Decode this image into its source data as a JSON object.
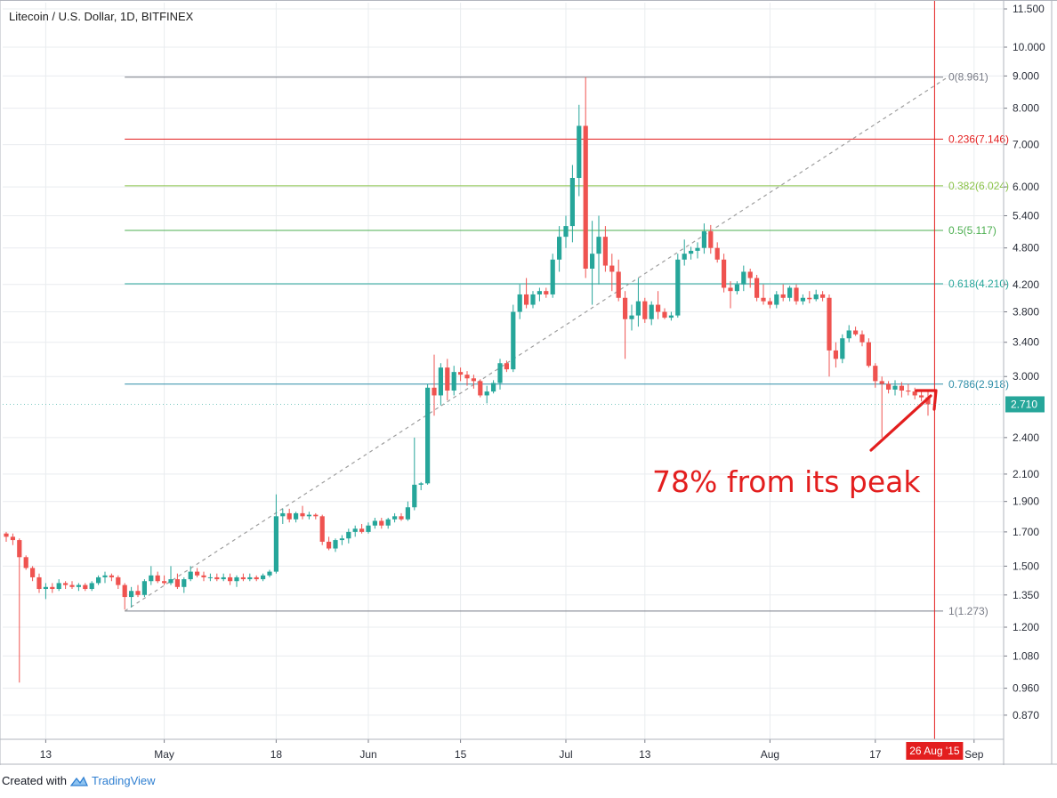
{
  "header": {
    "title": "Litecoin / U.S. Dollar, 1D, BITFINEX"
  },
  "annotation": {
    "text": "78% from its peak"
  },
  "footer": {
    "created_with": "Created with",
    "brand": "TradingView"
  },
  "price_badge": {
    "text": "2.710",
    "color": "#26a69a"
  },
  "date_badge": {
    "text": "26 Aug '15",
    "color": "#e31e1e"
  },
  "colors": {
    "up": "#26a69a",
    "down": "#ef5350",
    "grid": "#e9ecef",
    "accent": "#e31e1e"
  },
  "chart_data": {
    "type": "candlestick",
    "title": "Litecoin / U.S. Dollar, 1D, BITFINEX",
    "y_scale": "log",
    "y_ticks": [
      11.5,
      10.0,
      9.0,
      8.0,
      7.0,
      6.0,
      5.4,
      4.8,
      4.2,
      3.8,
      3.4,
      3.0,
      2.4,
      2.1,
      1.9,
      1.7,
      1.5,
      1.35,
      1.2,
      1.08,
      0.96,
      0.87
    ],
    "y_tick_labels": [
      "11.500",
      "10.000",
      "9.000",
      "8.000",
      "7.000",
      "6.000",
      "5.400",
      "4.800",
      "4.200",
      "3.800",
      "3.400",
      "3.000",
      "2.400",
      "2.100",
      "1.900",
      "1.700",
      "1.500",
      "1.350",
      "1.200",
      "1.080",
      "0.960",
      "0.870"
    ],
    "x_ticks": [
      {
        "label": "13",
        "day": 6
      },
      {
        "label": "May",
        "day": 24
      },
      {
        "label": "18",
        "day": 41
      },
      {
        "label": "Jun",
        "day": 55
      },
      {
        "label": "15",
        "day": 69
      },
      {
        "label": "Jul",
        "day": 85
      },
      {
        "label": "13",
        "day": 97
      },
      {
        "label": "Aug",
        "day": 116
      },
      {
        "label": "17",
        "day": 132
      },
      {
        "label": "Sep",
        "day": 147
      }
    ],
    "fibonacci": [
      {
        "label": "0(8.961)",
        "value": 8.961,
        "color": "#787b86"
      },
      {
        "label": "0.236(7.146)",
        "value": 7.146,
        "color": "#e31e1e"
      },
      {
        "label": "0.382(6.024)",
        "value": 6.024,
        "color": "#8bc34a"
      },
      {
        "label": "0.5(5.117)",
        "value": 5.117,
        "color": "#4caf50"
      },
      {
        "label": "0.618(4.210)",
        "value": 4.21,
        "color": "#26a69a"
      },
      {
        "label": "0.786(2.918)",
        "value": 2.918,
        "color": "#2f8ea8"
      },
      {
        "label": "1(1.273)",
        "value": 1.273,
        "color": "#787b86"
      }
    ],
    "trend_line": {
      "from": {
        "day": 18,
        "value": 1.273
      },
      "to": {
        "day": 143,
        "value": 8.961
      }
    },
    "last_price": 2.71,
    "marker_day": 141,
    "candles": [
      [
        1.69,
        1.7,
        1.64,
        1.67
      ],
      [
        1.67,
        1.69,
        1.62,
        1.65
      ],
      [
        1.65,
        1.66,
        0.98,
        1.55
      ],
      [
        1.55,
        1.56,
        1.48,
        1.49
      ],
      [
        1.49,
        1.5,
        1.42,
        1.44
      ],
      [
        1.44,
        1.46,
        1.36,
        1.38
      ],
      [
        1.38,
        1.41,
        1.33,
        1.39
      ],
      [
        1.39,
        1.41,
        1.36,
        1.38
      ],
      [
        1.38,
        1.43,
        1.37,
        1.41
      ],
      [
        1.41,
        1.42,
        1.38,
        1.4
      ],
      [
        1.4,
        1.42,
        1.38,
        1.39
      ],
      [
        1.39,
        1.41,
        1.37,
        1.4
      ],
      [
        1.4,
        1.41,
        1.37,
        1.38
      ],
      [
        1.38,
        1.42,
        1.37,
        1.41
      ],
      [
        1.41,
        1.45,
        1.4,
        1.44
      ],
      [
        1.44,
        1.47,
        1.41,
        1.45
      ],
      [
        1.45,
        1.46,
        1.42,
        1.44
      ],
      [
        1.44,
        1.45,
        1.38,
        1.4
      ],
      [
        1.4,
        1.41,
        1.28,
        1.34
      ],
      [
        1.34,
        1.39,
        1.29,
        1.37
      ],
      [
        1.37,
        1.4,
        1.34,
        1.35
      ],
      [
        1.35,
        1.43,
        1.34,
        1.42
      ],
      [
        1.42,
        1.5,
        1.4,
        1.45
      ],
      [
        1.45,
        1.47,
        1.41,
        1.42
      ],
      [
        1.42,
        1.45,
        1.4,
        1.41
      ],
      [
        1.41,
        1.5,
        1.4,
        1.43
      ],
      [
        1.43,
        1.46,
        1.38,
        1.39
      ],
      [
        1.39,
        1.44,
        1.36,
        1.43
      ],
      [
        1.43,
        1.5,
        1.42,
        1.47
      ],
      [
        1.47,
        1.49,
        1.44,
        1.45
      ],
      [
        1.45,
        1.47,
        1.42,
        1.44
      ],
      [
        1.44,
        1.46,
        1.42,
        1.44
      ],
      [
        1.44,
        1.46,
        1.42,
        1.43
      ],
      [
        1.43,
        1.46,
        1.42,
        1.44
      ],
      [
        1.44,
        1.46,
        1.4,
        1.42
      ],
      [
        1.42,
        1.45,
        1.39,
        1.44
      ],
      [
        1.44,
        1.46,
        1.42,
        1.43
      ],
      [
        1.43,
        1.46,
        1.42,
        1.44
      ],
      [
        1.44,
        1.45,
        1.42,
        1.43
      ],
      [
        1.43,
        1.46,
        1.42,
        1.45
      ],
      [
        1.45,
        1.48,
        1.44,
        1.47
      ],
      [
        1.47,
        1.95,
        1.46,
        1.8
      ],
      [
        1.8,
        1.85,
        1.75,
        1.82
      ],
      [
        1.82,
        1.85,
        1.76,
        1.78
      ],
      [
        1.78,
        1.83,
        1.76,
        1.82
      ],
      [
        1.82,
        1.87,
        1.78,
        1.8
      ],
      [
        1.8,
        1.83,
        1.78,
        1.81
      ],
      [
        1.81,
        1.82,
        1.78,
        1.8
      ],
      [
        1.8,
        1.81,
        1.62,
        1.64
      ],
      [
        1.64,
        1.67,
        1.59,
        1.6
      ],
      [
        1.6,
        1.66,
        1.58,
        1.65
      ],
      [
        1.65,
        1.68,
        1.62,
        1.66
      ],
      [
        1.66,
        1.72,
        1.63,
        1.7
      ],
      [
        1.7,
        1.74,
        1.67,
        1.72
      ],
      [
        1.72,
        1.75,
        1.69,
        1.7
      ],
      [
        1.7,
        1.76,
        1.69,
        1.74
      ],
      [
        1.74,
        1.79,
        1.72,
        1.77
      ],
      [
        1.77,
        1.79,
        1.72,
        1.74
      ],
      [
        1.74,
        1.79,
        1.72,
        1.78
      ],
      [
        1.78,
        1.82,
        1.76,
        1.8
      ],
      [
        1.8,
        1.82,
        1.77,
        1.78
      ],
      [
        1.78,
        1.9,
        1.77,
        1.86
      ],
      [
        1.86,
        2.4,
        1.84,
        2.02
      ],
      [
        2.02,
        2.04,
        1.98,
        2.03
      ],
      [
        2.03,
        2.92,
        2.02,
        2.88
      ],
      [
        2.88,
        3.25,
        2.6,
        2.8
      ],
      [
        2.8,
        3.15,
        2.7,
        3.1
      ],
      [
        3.1,
        3.2,
        2.75,
        2.85
      ],
      [
        2.85,
        3.12,
        2.8,
        3.05
      ],
      [
        3.05,
        3.1,
        2.95,
        3.02
      ],
      [
        3.02,
        3.06,
        2.9,
        2.98
      ],
      [
        2.98,
        3.02,
        2.87,
        2.95
      ],
      [
        2.95,
        2.97,
        2.78,
        2.8
      ],
      [
        2.8,
        2.9,
        2.72,
        2.84
      ],
      [
        2.84,
        2.96,
        2.82,
        2.93
      ],
      [
        2.93,
        3.2,
        2.86,
        3.15
      ],
      [
        3.15,
        3.18,
        3.05,
        3.08
      ],
      [
        3.08,
        3.9,
        3.05,
        3.8
      ],
      [
        3.8,
        4.2,
        3.7,
        4.05
      ],
      [
        4.05,
        4.3,
        3.85,
        3.9
      ],
      [
        3.9,
        4.1,
        3.85,
        4.05
      ],
      [
        4.05,
        4.15,
        3.95,
        4.1
      ],
      [
        4.1,
        4.15,
        4.0,
        4.05
      ],
      [
        4.05,
        4.7,
        4.0,
        4.6
      ],
      [
        4.6,
        5.2,
        4.4,
        5.0
      ],
      [
        5.0,
        5.4,
        4.8,
        5.2
      ],
      [
        5.2,
        6.5,
        4.9,
        6.2
      ],
      [
        6.2,
        8.1,
        5.8,
        7.5
      ],
      [
        7.5,
        8.96,
        4.3,
        4.45
      ],
      [
        4.45,
        5.3,
        3.9,
        4.7
      ],
      [
        4.7,
        5.4,
        4.2,
        5.0
      ],
      [
        5.0,
        5.2,
        4.4,
        4.5
      ],
      [
        4.5,
        4.7,
        4.1,
        4.4
      ],
      [
        4.4,
        4.6,
        3.95,
        4.0
      ],
      [
        4.0,
        4.1,
        3.2,
        3.7
      ],
      [
        3.7,
        3.9,
        3.55,
        3.75
      ],
      [
        3.75,
        4.3,
        3.6,
        3.95
      ],
      [
        3.95,
        4.0,
        3.65,
        3.7
      ],
      [
        3.7,
        3.95,
        3.62,
        3.9
      ],
      [
        3.9,
        4.1,
        3.7,
        3.8
      ],
      [
        3.8,
        3.85,
        3.7,
        3.72
      ],
      [
        3.72,
        3.8,
        3.68,
        3.75
      ],
      [
        3.75,
        4.7,
        3.72,
        4.6
      ],
      [
        4.6,
        4.95,
        4.5,
        4.7
      ],
      [
        4.7,
        4.82,
        4.6,
        4.75
      ],
      [
        4.75,
        4.9,
        4.62,
        4.8
      ],
      [
        4.8,
        5.25,
        4.7,
        5.1
      ],
      [
        5.1,
        5.22,
        4.7,
        4.8
      ],
      [
        4.8,
        4.9,
        4.55,
        4.6
      ],
      [
        4.6,
        4.7,
        4.08,
        4.15
      ],
      [
        4.15,
        4.25,
        3.85,
        4.1
      ],
      [
        4.1,
        4.25,
        4.05,
        4.2
      ],
      [
        4.2,
        4.5,
        4.1,
        4.4
      ],
      [
        4.4,
        4.45,
        4.15,
        4.3
      ],
      [
        4.3,
        4.35,
        3.95,
        4.0
      ],
      [
        4.0,
        4.2,
        3.9,
        3.95
      ],
      [
        3.95,
        4.0,
        3.85,
        3.9
      ],
      [
        3.9,
        4.1,
        3.85,
        4.05
      ],
      [
        4.05,
        4.2,
        3.95,
        4.0
      ],
      [
        4.0,
        4.18,
        3.95,
        4.15
      ],
      [
        4.15,
        4.2,
        3.9,
        3.95
      ],
      [
        3.95,
        4.05,
        3.9,
        4.0
      ],
      [
        4.0,
        4.1,
        3.92,
        3.98
      ],
      [
        3.98,
        4.12,
        3.95,
        4.05
      ],
      [
        4.05,
        4.1,
        3.95,
        4.0
      ],
      [
        4.0,
        4.05,
        3.0,
        3.3
      ],
      [
        3.3,
        3.4,
        3.1,
        3.2
      ],
      [
        3.2,
        3.5,
        3.15,
        3.45
      ],
      [
        3.45,
        3.62,
        3.4,
        3.55
      ],
      [
        3.55,
        3.6,
        3.48,
        3.5
      ],
      [
        3.5,
        3.55,
        3.35,
        3.4
      ],
      [
        3.4,
        3.45,
        3.1,
        3.12
      ],
      [
        3.12,
        3.15,
        2.88,
        2.95
      ],
      [
        2.95,
        3.0,
        2.4,
        2.92
      ],
      [
        2.92,
        2.95,
        2.82,
        2.86
      ],
      [
        2.86,
        2.96,
        2.8,
        2.9
      ],
      [
        2.9,
        2.94,
        2.78,
        2.85
      ],
      [
        2.85,
        2.92,
        2.8,
        2.84
      ],
      [
        2.84,
        2.88,
        2.76,
        2.8
      ],
      [
        2.8,
        2.85,
        2.74,
        2.78
      ],
      [
        2.78,
        2.84,
        2.6,
        2.71
      ]
    ]
  }
}
